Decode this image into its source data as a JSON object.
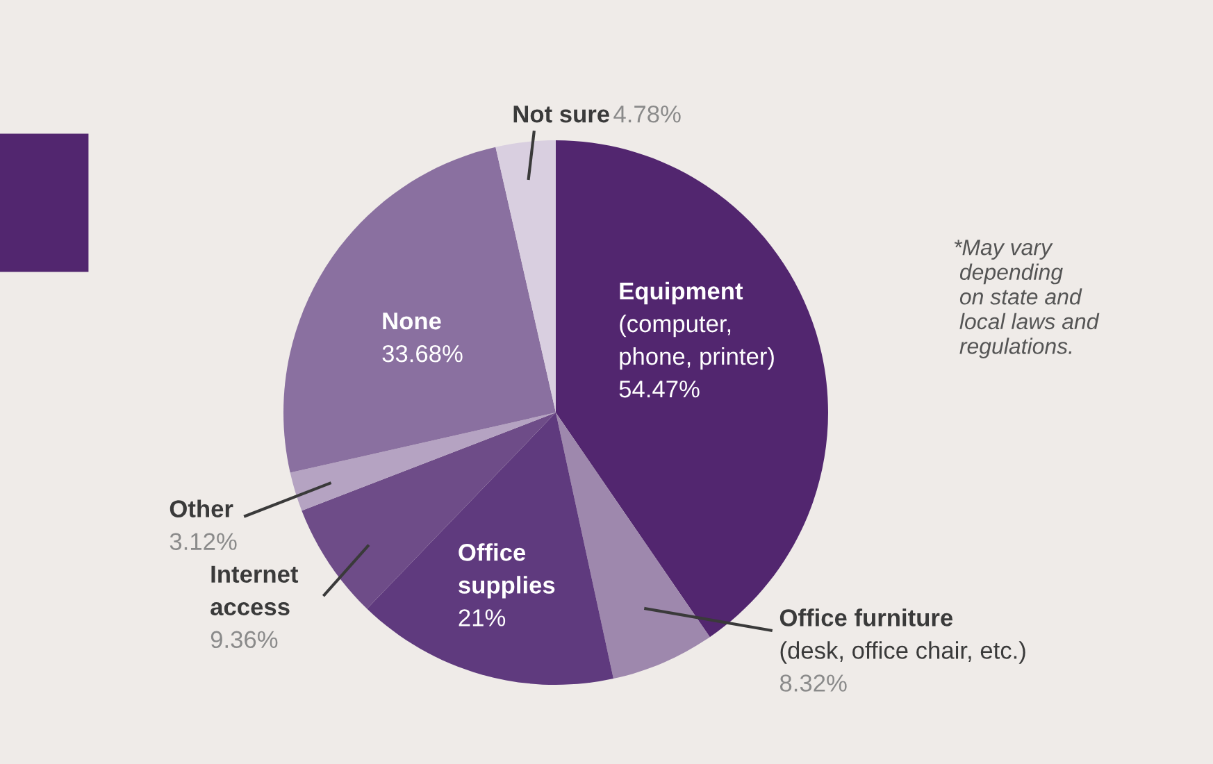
{
  "chart_data": {
    "type": "pie",
    "categories": [
      "Equipment\n(computer,\nphone, printer)",
      "Office furniture\n(desk, office chair, etc.)",
      "Office\nsupplies",
      "Internet\naccess",
      "Other",
      "None",
      "Not sure"
    ],
    "values": [
      54.47,
      8.32,
      21,
      9.36,
      3.12,
      33.68,
      4.78
    ],
    "value_labels": [
      "54.47%",
      "8.32%",
      "21%",
      "9.36%",
      "3.12%",
      "33.68%",
      "4.78%"
    ],
    "colors": [
      "#52266f",
      "#9e88ad",
      "#5f3a7e",
      "#6e4c88",
      "#b5a3c2",
      "#8a70a0",
      "#d9cfe0"
    ],
    "annotations": [
      "*May vary\n depending\n on state and\n local laws and\n regulations."
    ]
  }
}
